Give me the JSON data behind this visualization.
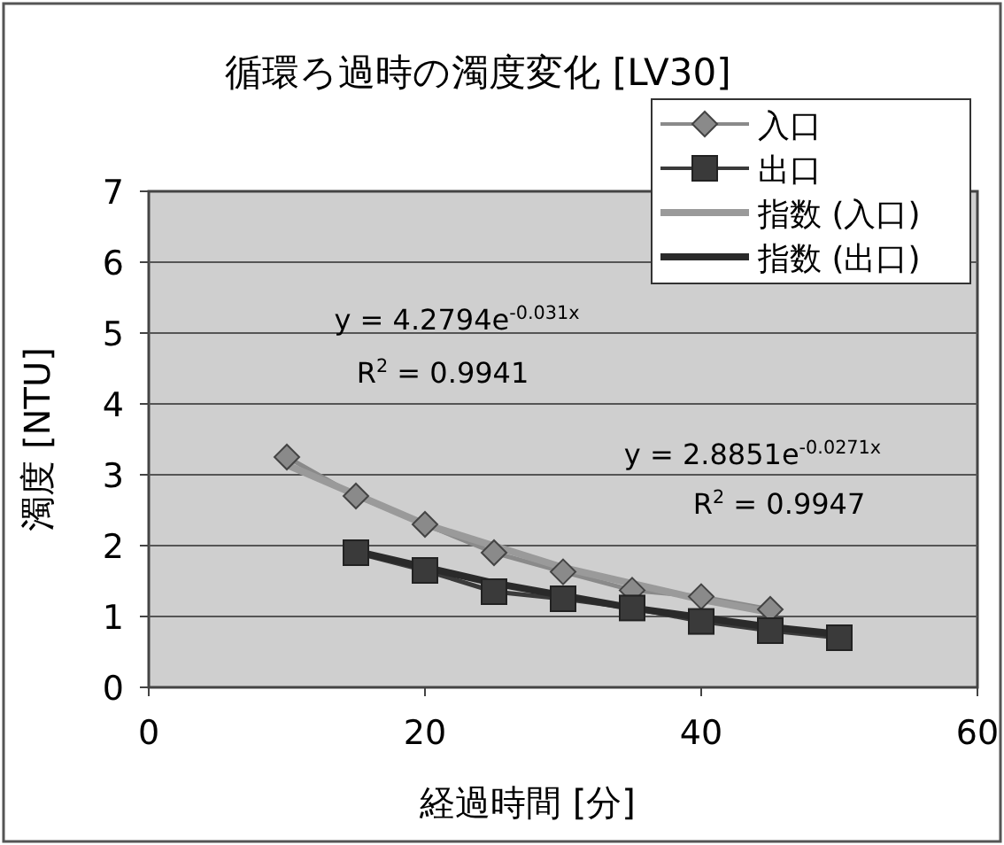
{
  "chart_data": {
    "type": "line",
    "title": "循環ろ過時の濁度変化 [LV30]",
    "xlabel": "経過時間 [分]",
    "ylabel": "濁度 [NTU]",
    "xlim": [
      0,
      60
    ],
    "xticks": [
      0,
      20,
      40,
      60
    ],
    "ylim": [
      0,
      7
    ],
    "yticks": [
      0,
      1,
      2,
      3,
      4,
      5,
      6,
      7
    ],
    "grid": "y",
    "legend": "top right",
    "series": [
      {
        "name": "入口",
        "color": "#8a8a8a",
        "marker": "diamond",
        "x": [
          10,
          15,
          20,
          25,
          30,
          35,
          40,
          45
        ],
        "values": [
          3.25,
          2.7,
          2.3,
          1.9,
          1.63,
          1.37,
          1.28,
          1.1
        ]
      },
      {
        "name": "出口",
        "color": "#3a3a3a",
        "marker": "square",
        "x": [
          15,
          20,
          25,
          30,
          35,
          40,
          45,
          50
        ],
        "values": [
          1.9,
          1.65,
          1.35,
          1.25,
          1.12,
          0.93,
          0.8,
          0.7
        ]
      },
      {
        "name": "指数 (入口)",
        "color": "#9a9a9a",
        "marker": "none",
        "x": [
          10,
          20,
          30,
          40,
          45
        ],
        "values": [
          3.14,
          2.3,
          1.69,
          1.24,
          1.06
        ]
      },
      {
        "name": "指数 (出口)",
        "color": "#2a2a2a",
        "marker": "none",
        "x": [
          15,
          25,
          35,
          45,
          50
        ],
        "values": [
          1.92,
          1.47,
          1.12,
          0.85,
          0.75
        ]
      }
    ],
    "annotations": [
      "y = 4.2794e$^{-0.031x}$",
      "R$^{2}$ = 0.9941",
      "y = 2.8851e$^{-0.0271x}$",
      "R$^{2}$ = 0.9947"
    ]
  }
}
